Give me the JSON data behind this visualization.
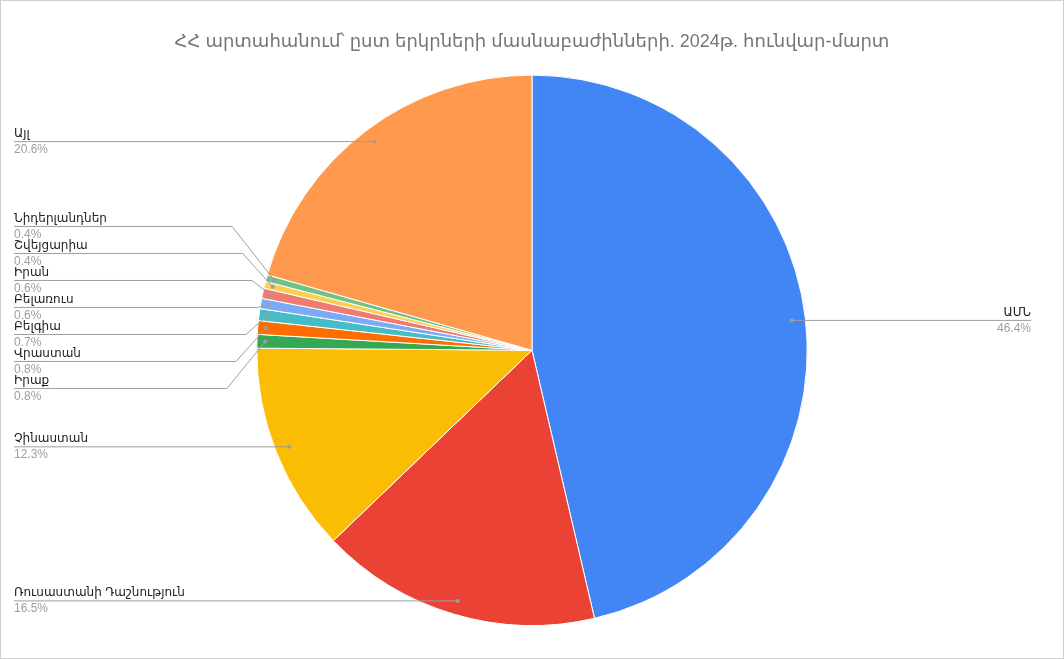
{
  "chart_data": {
    "type": "pie",
    "title": "ՀՀ արտահանում՝ ըստ երկրների մասնաբաժինների. 2024թ. հունվար-մարտ",
    "categories": [
      "ԱՄՆ",
      "Ռուսաստանի Դաշնություն",
      "Չինաստան",
      "Իրաք",
      "Վրաստան",
      "Բելգիա",
      "Բելառուս",
      "Իրան",
      "Շվեյցարիա",
      "Նիդերլանդներ",
      "Այլ"
    ],
    "values": [
      46.4,
      16.5,
      12.3,
      0.8,
      0.8,
      0.7,
      0.6,
      0.6,
      0.4,
      0.4,
      20.6
    ],
    "value_labels": [
      "46.4%",
      "16.5%",
      "12.3%",
      "0.8%",
      "0.8%",
      "0.7%",
      "0.6%",
      "0.6%",
      "0.4%",
      "0.4%",
      "20.6%"
    ],
    "colors": [
      "#4285f4",
      "#ea4335",
      "#fbbc04",
      "#34a853",
      "#ff6d01",
      "#46bdc6",
      "#7baaf7",
      "#f07b72",
      "#fcd04f",
      "#71c287",
      "#ff994d"
    ],
    "legend": false
  }
}
